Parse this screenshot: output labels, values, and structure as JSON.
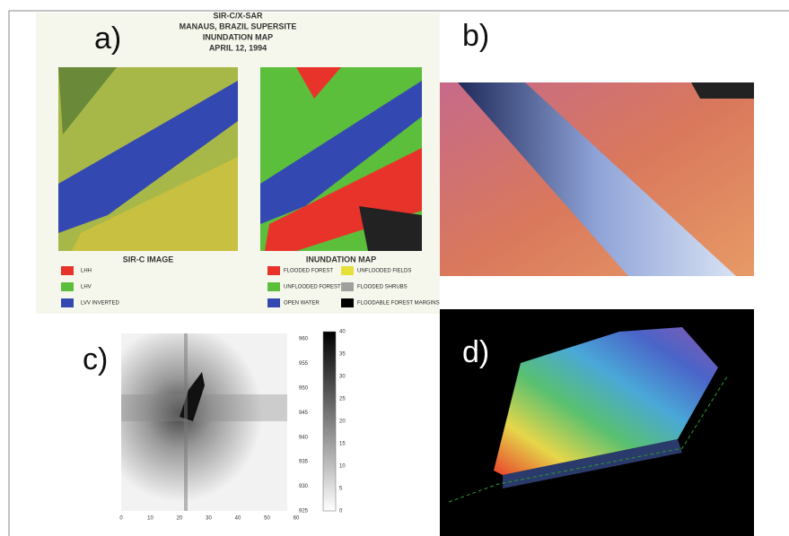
{
  "panel_a": {
    "label": "a)",
    "title_lines": [
      "SIR-C/X-SAR",
      "MANAUS, BRAZIL SUPERSITE",
      "INUNDATION MAP",
      "APRIL 12, 1994"
    ],
    "left_caption": "SIR-C IMAGE",
    "right_caption": "INUNDATION MAP",
    "left_legend": [
      {
        "label": "LHH",
        "color": "#e8332a"
      },
      {
        "label": "LHV",
        "color": "#5cbf3c"
      },
      {
        "label": "LVV INVERTED",
        "color": "#3348b0"
      }
    ],
    "right_legend": [
      {
        "label": "FLOODED FOREST",
        "color": "#e8332a"
      },
      {
        "label": "UNFLOODED FIELDS",
        "color": "#e6e03a"
      },
      {
        "label": "UNFLOODED FOREST",
        "color": "#5cbf3c"
      },
      {
        "label": "FLOODED SHRUBS",
        "color": "#a0a0a0"
      },
      {
        "label": "OPEN WATER",
        "color": "#3348b0"
      },
      {
        "label": "FLOODABLE FOREST MARGINS",
        "color": "#000000"
      }
    ]
  },
  "panel_b": {
    "label": "b)"
  },
  "panel_c": {
    "label": "c)",
    "x_ticks": [
      0,
      10,
      20,
      30,
      40,
      50,
      60
    ],
    "y_ticks": [
      925,
      930,
      935,
      940,
      945,
      950,
      955,
      960
    ],
    "colorbar_ticks": [
      0,
      5,
      10,
      15,
      20,
      25,
      30,
      35,
      40
    ]
  },
  "panel_d": {
    "label": "d)"
  }
}
